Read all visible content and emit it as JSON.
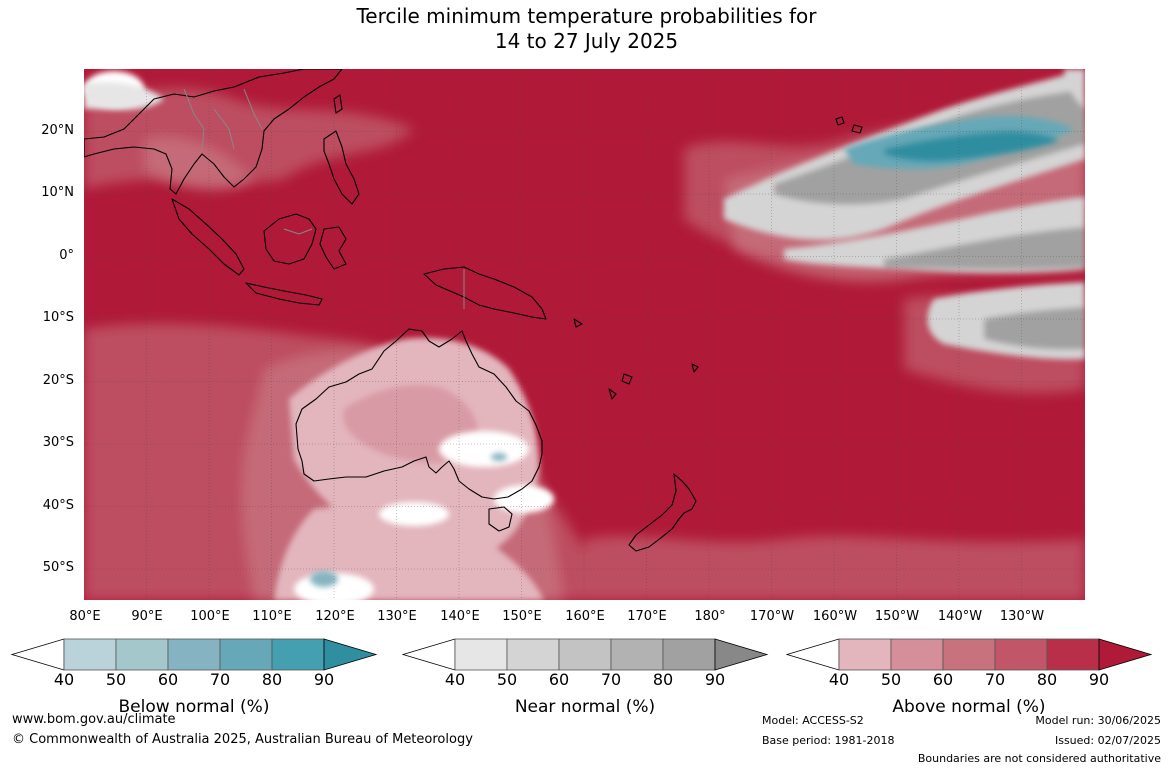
{
  "title": {
    "line1": "Tercile minimum temperature probabilities for",
    "line2": "14 to 27 July 2025"
  },
  "axes": {
    "lat_labels": [
      "20°N",
      "10°N",
      "0°",
      "10°S",
      "20°S",
      "30°S",
      "40°S",
      "50°S"
    ],
    "lon_labels": [
      "80°E",
      "90°E",
      "100°E",
      "110°E",
      "120°E",
      "130°E",
      "140°E",
      "150°E",
      "160°E",
      "170°E",
      "180°",
      "170°W",
      "160°W",
      "150°W",
      "140°W",
      "130°W"
    ],
    "lon_range": [
      80,
      240
    ],
    "lat_range": [
      -55,
      30
    ]
  },
  "colorbars": [
    {
      "title": "Below normal (%)",
      "ticks": [
        "40",
        "50",
        "60",
        "70",
        "80",
        "90"
      ],
      "colors": [
        "#ffffff",
        "#bad3da",
        "#a4c7cc",
        "#86b3c1",
        "#66a8b8",
        "#44a0b0",
        "#2f8ea0"
      ]
    },
    {
      "title": "Near normal (%)",
      "ticks": [
        "40",
        "50",
        "60",
        "70",
        "80",
        "90"
      ],
      "colors": [
        "#ffffff",
        "#e6e6e6",
        "#d4d4d4",
        "#c3c3c3",
        "#b2b2b2",
        "#a1a1a1",
        "#888888"
      ]
    },
    {
      "title": "Above normal (%)",
      "ticks": [
        "40",
        "50",
        "60",
        "70",
        "80",
        "90"
      ],
      "colors": [
        "#ffffff",
        "#e3b5bd",
        "#d48f9a",
        "#c8727e",
        "#c05667",
        "#b92e48",
        "#b01a38"
      ]
    }
  ],
  "footer": {
    "website": "www.bom.gov.au/climate",
    "copyright": "© Commonwealth of Australia 2025, Australian Bureau of Meteorology",
    "model": "Model: ACCESS-S2",
    "base_period": "Base period: 1981-2018",
    "model_run": "Model run: 30/06/2025",
    "issued": "Issued: 02/07/2025",
    "disclaimer": "Boundaries are not considered authoritative"
  }
}
